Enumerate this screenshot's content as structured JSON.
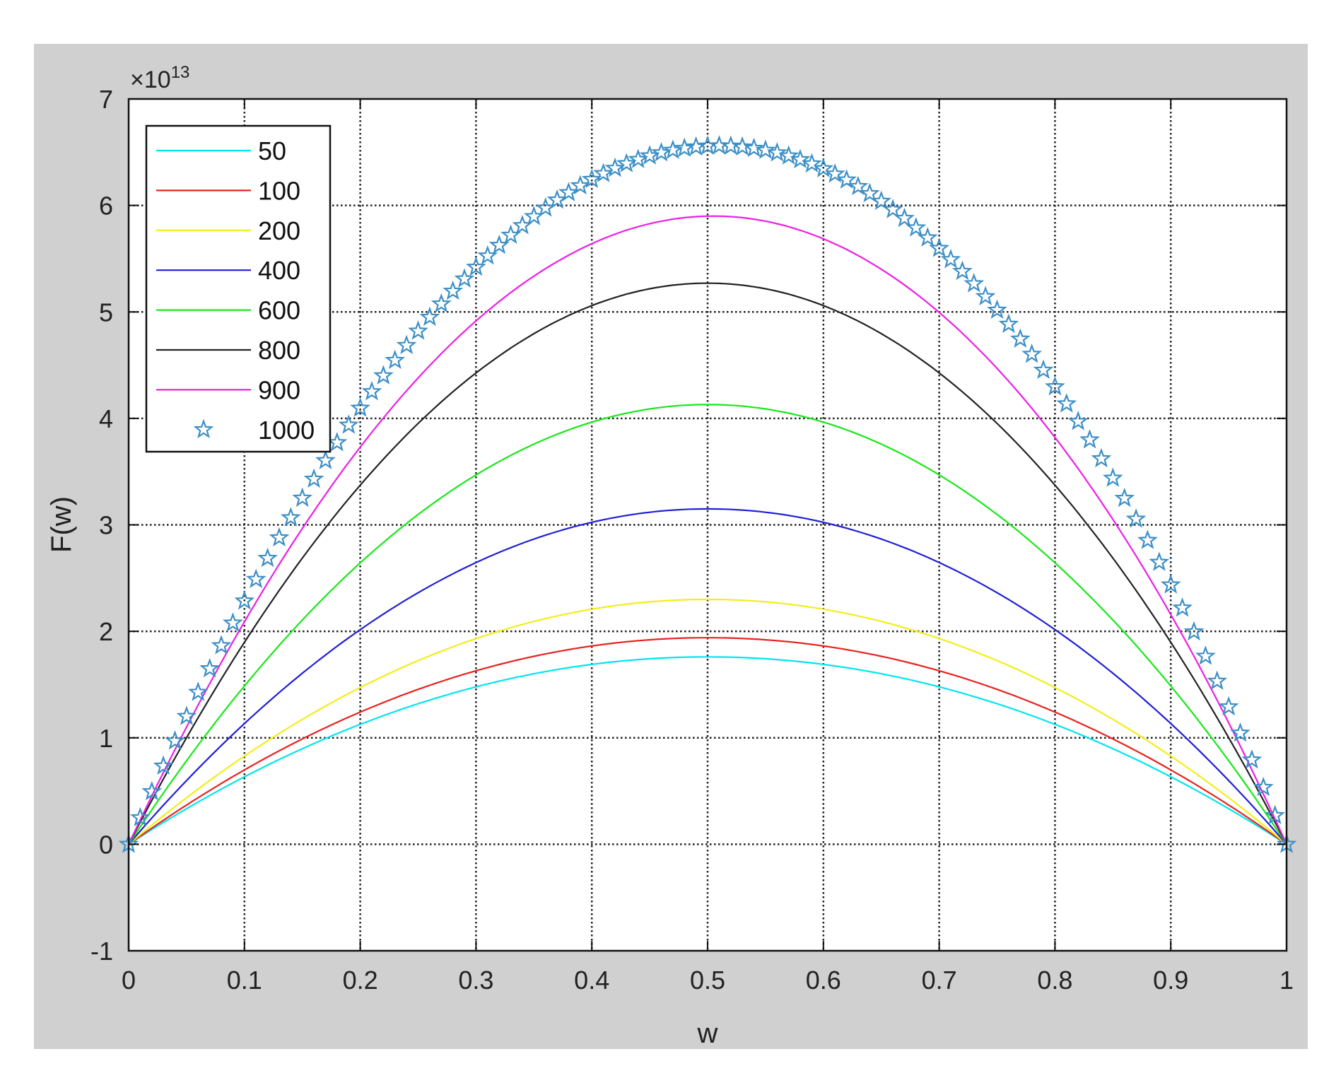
{
  "chart_data": {
    "type": "line",
    "title": "",
    "xlabel": "w",
    "ylabel": "F(w)",
    "exponent_label": "×10",
    "exponent_power": "13",
    "xlim": [
      0,
      1
    ],
    "ylim": [
      -1,
      7
    ],
    "xticks": [
      0,
      0.1,
      0.2,
      0.3,
      0.4,
      0.5,
      0.6,
      0.7,
      0.8,
      0.9,
      1
    ],
    "xtick_labels": [
      "0",
      "0.1",
      "0.2",
      "0.3",
      "0.4",
      "0.5",
      "0.6",
      "0.7",
      "0.8",
      "0.9",
      "1"
    ],
    "yticks": [
      -1,
      0,
      1,
      2,
      3,
      4,
      5,
      6,
      7
    ],
    "ytick_labels": [
      "-1",
      "0",
      "1",
      "2",
      "3",
      "4",
      "5",
      "6",
      "7"
    ],
    "grid": true,
    "legend_position": "top-left",
    "series": [
      {
        "name": "50",
        "peak": 1.76,
        "peak_x": 0.5,
        "color": "#00e5ee",
        "style": "line"
      },
      {
        "name": "100",
        "peak": 1.94,
        "peak_x": 0.5,
        "color": "#e8231f",
        "style": "line"
      },
      {
        "name": "200",
        "peak": 2.3,
        "peak_x": 0.5,
        "color": "#f2ee18",
        "style": "line"
      },
      {
        "name": "400",
        "peak": 3.15,
        "peak_x": 0.5,
        "color": "#1f1fd6",
        "style": "line"
      },
      {
        "name": "600",
        "peak": 4.13,
        "peak_x": 0.5,
        "color": "#18e818",
        "style": "line"
      },
      {
        "name": "800",
        "peak": 5.27,
        "peak_x": 0.5,
        "color": "#222222",
        "style": "line"
      },
      {
        "name": "900",
        "peak": 5.9,
        "peak_x": 0.51,
        "color": "#ee1ee6",
        "style": "line"
      },
      {
        "name": "1000",
        "peak": 6.56,
        "peak_x": 0.52,
        "color": "#3c8fc6",
        "style": "star"
      }
    ]
  }
}
